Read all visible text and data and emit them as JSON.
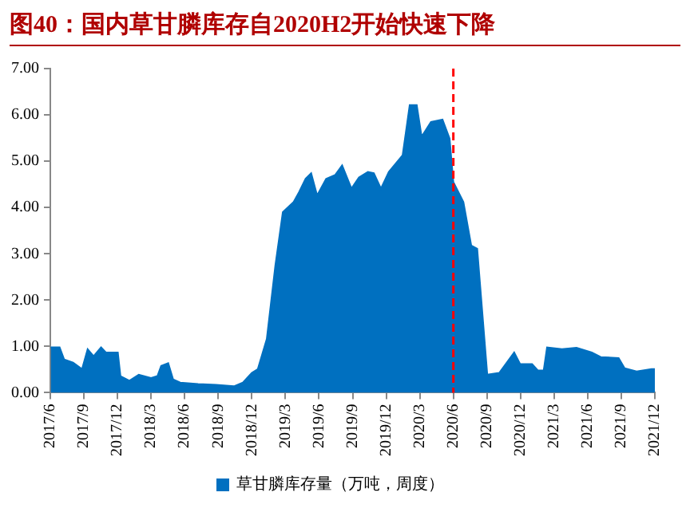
{
  "chart_data": {
    "type": "area",
    "title": "图40：国内草甘膦库存自2020H2开始快速下降",
    "x": [
      "2017-06-02",
      "2017-06-26",
      "2017-07-08",
      "2017-08-02",
      "2017-08-26",
      "2017-09-11",
      "2017-09-27",
      "2017-10-17",
      "2017-10-30",
      "2017-12-02",
      "2017-12-09",
      "2018-01-03",
      "2018-01-28",
      "2018-03-01",
      "2018-03-18",
      "2018-03-28",
      "2018-04-17",
      "2018-04-30",
      "2018-05-19",
      "2018-07-07",
      "2018-08-25",
      "2018-10-13",
      "2018-11-07",
      "2018-12-01",
      "2018-12-17",
      "2019-01-11",
      "2019-02-04",
      "2019-02-24",
      "2019-03-23",
      "2019-04-08",
      "2019-04-25",
      "2019-05-10",
      "2019-05-26",
      "2019-06-20",
      "2019-07-14",
      "2019-08-03",
      "2019-08-28",
      "2019-09-18",
      "2019-10-12",
      "2019-10-28",
      "2019-11-17",
      "2019-12-08",
      "2020-01-15",
      "2020-02-04",
      "2020-02-23",
      "2020-03-06",
      "2020-03-31",
      "2020-05-02",
      "2020-05-21",
      "2020-05-31",
      "2020-06-28",
      "2020-07-19",
      "2020-08-05",
      "2020-09-02",
      "2020-10-04",
      "2020-11-14",
      "2020-11-30",
      "2021-01-02",
      "2021-01-18",
      "2021-02-03",
      "2021-02-12",
      "2021-03-22",
      "2021-05-01",
      "2021-06-12",
      "2021-07-06",
      "2021-08-24",
      "2021-09-10",
      "2021-10-12",
      "2021-11-22",
      "2021-12-01"
    ],
    "series": [
      {
        "name": "草甘膦库存量（万吨，周度）",
        "color": "#0070c0",
        "values": [
          0.98,
          0.98,
          0.72,
          0.65,
          0.51,
          0.94,
          0.79,
          0.98,
          0.87,
          0.87,
          0.36,
          0.26,
          0.39,
          0.32,
          0.36,
          0.58,
          0.64,
          0.29,
          0.22,
          0.19,
          0.17,
          0.14,
          0.22,
          0.43,
          0.51,
          1.16,
          2.75,
          3.9,
          4.12,
          4.34,
          4.62,
          4.74,
          4.26,
          4.62,
          4.7,
          4.91,
          4.41,
          4.65,
          4.77,
          4.74,
          4.41,
          4.77,
          5.13,
          6.21,
          6.21,
          5.53,
          5.85,
          5.9,
          5.49,
          4.55,
          4.12,
          3.18,
          3.11,
          0.39,
          0.43,
          0.87,
          0.62,
          0.62,
          0.48,
          0.48,
          0.98,
          0.94,
          0.97,
          0.87,
          0.77,
          0.75,
          0.53,
          0.46,
          0.51,
          0.51
        ]
      }
    ],
    "xlim": [
      "2017-06",
      "2021-12"
    ],
    "xticks": [
      {
        "value": "2017-06",
        "label": "2017/6"
      },
      {
        "value": "2017-09",
        "label": "2017/9"
      },
      {
        "value": "2017-12",
        "label": "2017/12"
      },
      {
        "value": "2018-03",
        "label": "2018/3"
      },
      {
        "value": "2018-06",
        "label": "2018/6"
      },
      {
        "value": "2018-09",
        "label": "2018/9"
      },
      {
        "value": "2018-12",
        "label": "2018/12"
      },
      {
        "value": "2019-03",
        "label": "2019/3"
      },
      {
        "value": "2019-06",
        "label": "2019/6"
      },
      {
        "value": "2019-09",
        "label": "2019/9"
      },
      {
        "value": "2019-12",
        "label": "2019/12"
      },
      {
        "value": "2020-03",
        "label": "2020/3"
      },
      {
        "value": "2020-06",
        "label": "2020/6"
      },
      {
        "value": "2020-09",
        "label": "2020/9"
      },
      {
        "value": "2020-12",
        "label": "2020/12"
      },
      {
        "value": "2021-03",
        "label": "2021/3"
      },
      {
        "value": "2021-06",
        "label": "2021/6"
      },
      {
        "value": "2021-09",
        "label": "2021/9"
      },
      {
        "value": "2021-12",
        "label": "2021/12"
      }
    ],
    "ylim": [
      0,
      7
    ],
    "yticks": [
      {
        "value": 0,
        "label": "0.00"
      },
      {
        "value": 1,
        "label": "1.00"
      },
      {
        "value": 2,
        "label": "2.00"
      },
      {
        "value": 3,
        "label": "3.00"
      },
      {
        "value": 4,
        "label": "4.00"
      },
      {
        "value": 5,
        "label": "5.00"
      },
      {
        "value": 6,
        "label": "6.00"
      },
      {
        "value": 7,
        "label": "7.00"
      }
    ],
    "ref_lines": [
      {
        "axis": "x",
        "value": "2020-06",
        "color": "#ff0000",
        "line_style": "dashed"
      }
    ],
    "grid": false,
    "legend": "bottom"
  }
}
